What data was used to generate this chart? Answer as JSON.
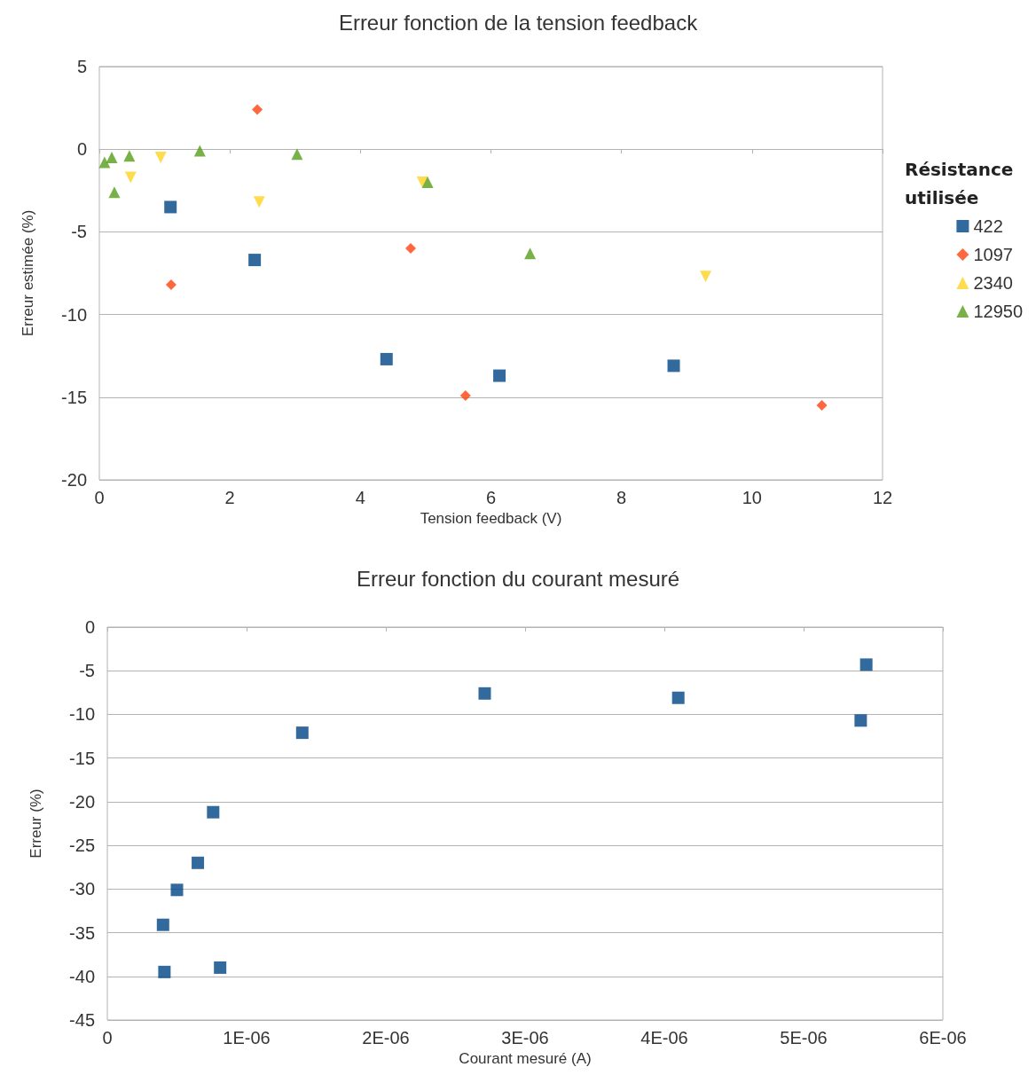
{
  "chart_data": [
    {
      "type": "scatter",
      "title": "Erreur fonction de la tension feedback",
      "xlabel": "Tension feedback (V)",
      "ylabel": "Erreur estimée (%)",
      "legend_title": "Résistance utilisée",
      "legend": "right",
      "grid": "y",
      "xlim": [
        0,
        12
      ],
      "xticks": [
        0,
        2,
        4,
        6,
        8,
        10,
        12
      ],
      "ylim": [
        -20,
        5
      ],
      "yticks": [
        -20,
        -15,
        -10,
        -5,
        0,
        5
      ],
      "series": [
        {
          "name": "422",
          "color": "#004586",
          "marker": "square",
          "x": [
            1.09,
            2.38,
            4.4,
            6.13,
            8.8
          ],
          "values": [
            -3.5,
            -6.7,
            -12.7,
            -13.7,
            -13.1
          ]
        },
        {
          "name": "1097",
          "color": "#ff420e",
          "marker": "diamond",
          "x": [
            1.1,
            2.42,
            4.77,
            5.61,
            11.07
          ],
          "values": [
            -8.2,
            2.4,
            -6.0,
            -14.9,
            -15.5
          ]
        },
        {
          "name": "2340",
          "color": "#ffd320",
          "marker": "triangle-down",
          "x": [
            0.48,
            0.94,
            2.45,
            4.95,
            9.29
          ],
          "values": [
            -1.7,
            -0.5,
            -3.2,
            -2.0,
            -7.7
          ]
        },
        {
          "name": "12950",
          "color": "#579d1c",
          "marker": "triangle",
          "x": [
            0.08,
            0.19,
            0.23,
            0.46,
            1.54,
            3.03,
            5.03,
            6.6
          ],
          "values": [
            -0.8,
            -0.5,
            -2.6,
            -0.4,
            -0.1,
            -0.3,
            -2.0,
            -6.3
          ]
        }
      ]
    },
    {
      "type": "scatter",
      "title": "Erreur fonction du courant mesuré",
      "xlabel": "Courant mesuré (A)",
      "ylabel": "Erreur (%)",
      "legend": false,
      "grid": "y",
      "xlim": [
        0,
        6e-06
      ],
      "xticks": [
        0,
        {
          "value": 1e-06,
          "label": "1E-06"
        },
        {
          "value": 2e-06,
          "label": "2E-06"
        },
        {
          "value": 3e-06,
          "label": "3E-06"
        },
        {
          "value": 4e-06,
          "label": "4E-06"
        },
        {
          "value": 5e-06,
          "label": "5E-06"
        },
        {
          "value": 6e-06,
          "label": "6E-06"
        }
      ],
      "ylim": [
        -45,
        0
      ],
      "yticks": [
        -45,
        -40,
        -35,
        -30,
        -25,
        -20,
        -15,
        -10,
        -5,
        0
      ],
      "series": [
        {
          "color": "#004586",
          "marker": "square",
          "x": [
            4e-07,
            4.1e-07,
            5e-07,
            6.5e-07,
            7.6e-07,
            8.1e-07,
            1.4e-06,
            2.71e-06,
            4.1e-06,
            5.41e-06,
            5.45e-06
          ],
          "values": [
            -34.1,
            -39.5,
            -30.1,
            -27.0,
            -21.2,
            -39.0,
            -12.1,
            -7.6,
            -8.1,
            -10.7,
            -4.3
          ]
        }
      ]
    }
  ]
}
